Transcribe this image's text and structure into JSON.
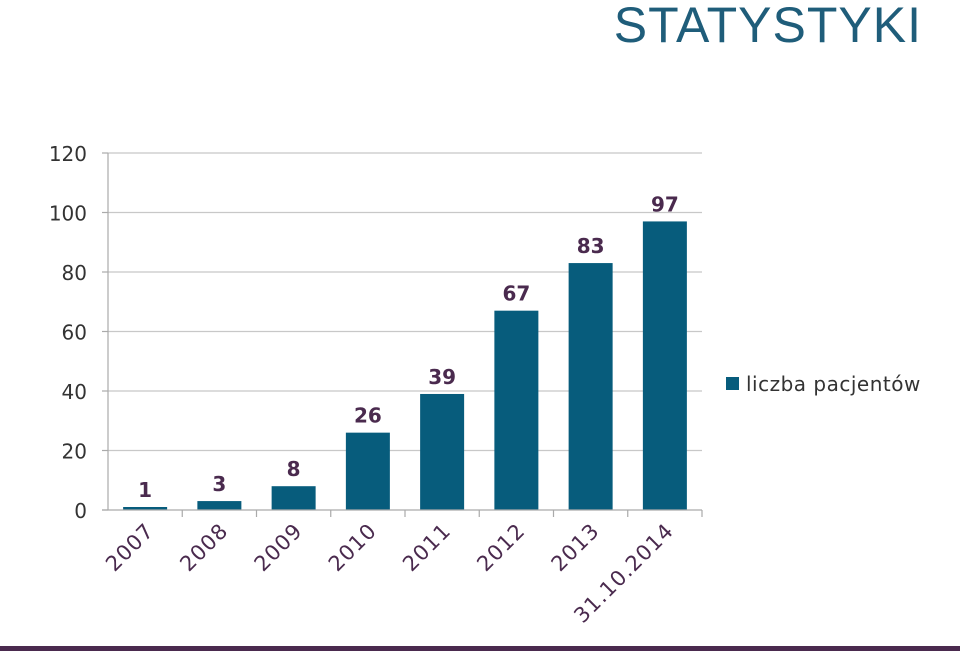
{
  "header": {
    "title": "STATYSTYKI"
  },
  "chart_data": {
    "type": "bar",
    "title": "",
    "xlabel": "",
    "ylabel": "",
    "categories": [
      "2007",
      "2008",
      "2009",
      "2010",
      "2011",
      "2012",
      "2013",
      "31.10.2014"
    ],
    "series": [
      {
        "name": "liczba pacjentów",
        "values": [
          1,
          3,
          8,
          26,
          39,
          67,
          83,
          97
        ]
      }
    ],
    "ylim": [
      0,
      120
    ],
    "yticks": [
      "0",
      "20",
      "40",
      "60",
      "80",
      "100",
      "120"
    ],
    "grid": true,
    "legend_position": "right",
    "colors": {
      "bar": "#075c7c",
      "data_label": "#4a2a4e",
      "grid": "#c8c8c8",
      "axis_text": "#333333"
    }
  }
}
